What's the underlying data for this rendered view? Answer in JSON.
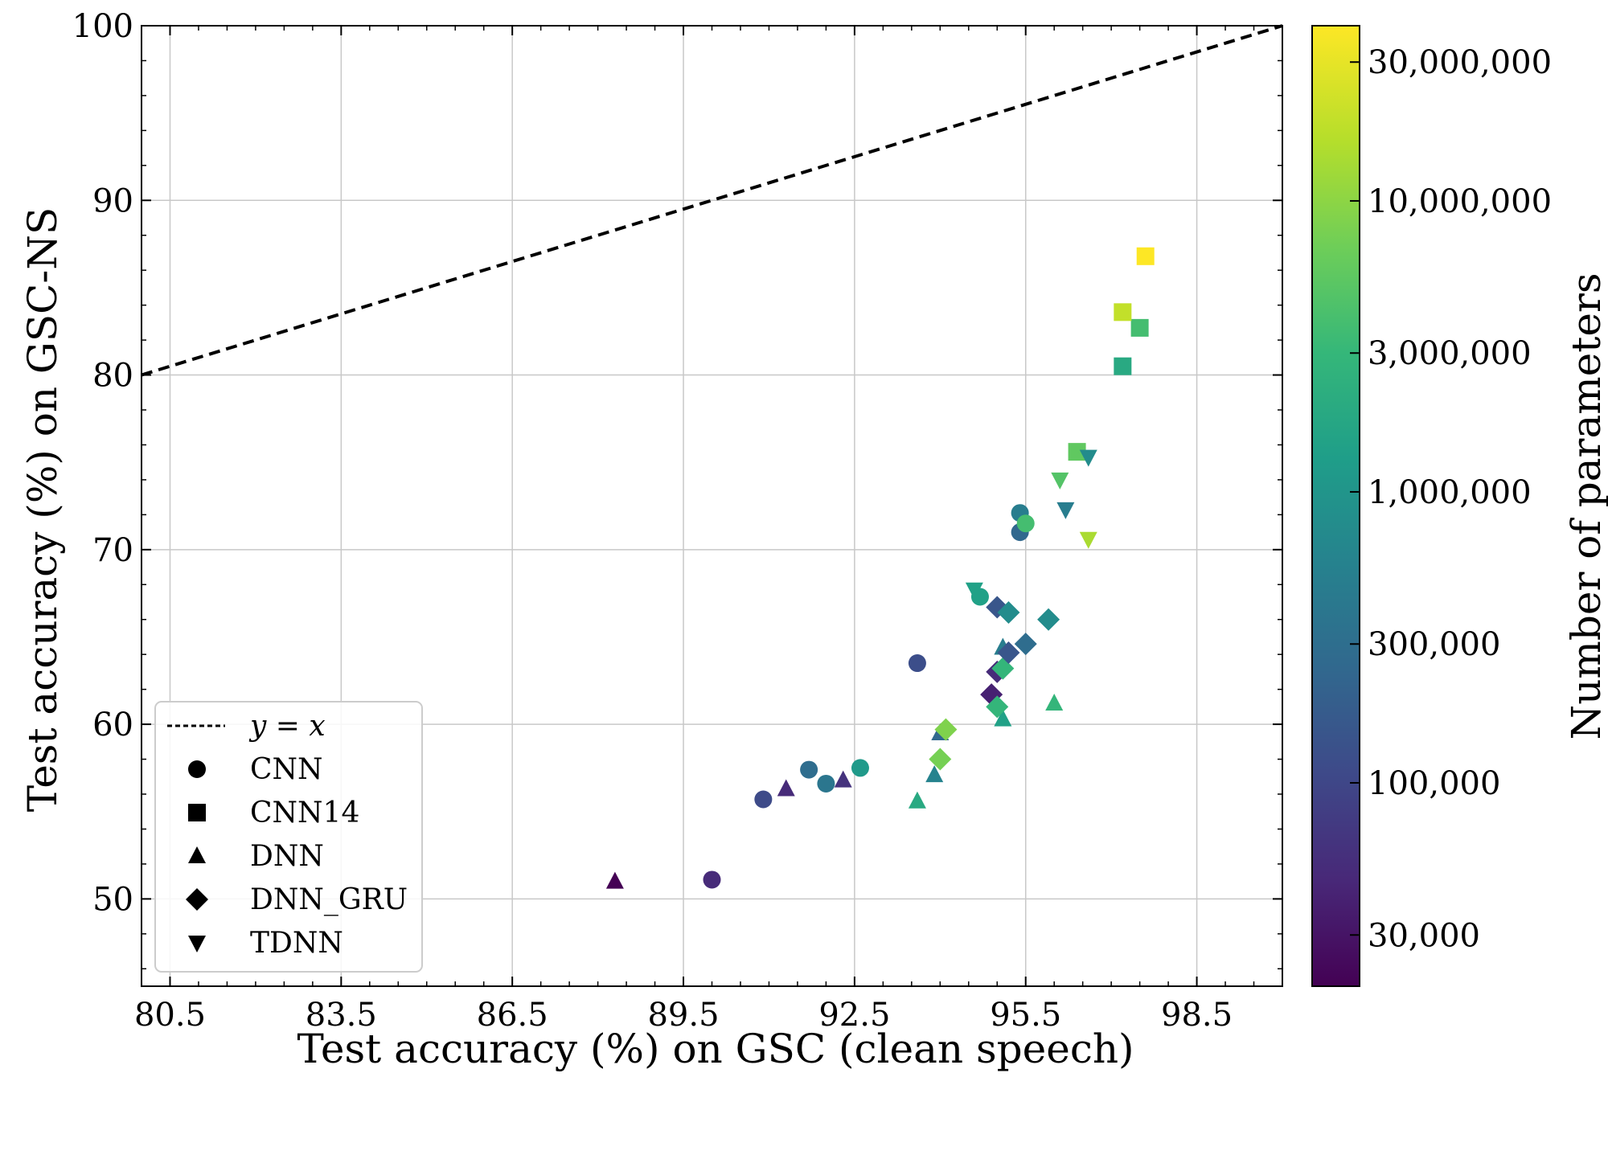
{
  "chart_data": {
    "type": "scatter",
    "title": "",
    "xlabel": "Test accuracy (%) on GSC (clean speech)",
    "ylabel": "Test accuracy (%) on GSC-NS",
    "xlim": [
      80.0,
      100.0
    ],
    "ylim": [
      45.0,
      100.0
    ],
    "x_ticks": [
      80.5,
      83.5,
      86.5,
      89.5,
      92.5,
      95.5,
      98.5
    ],
    "x_tick_labels": [
      "80.5",
      "83.5",
      "86.5",
      "89.5",
      "92.5",
      "95.5",
      "98.5"
    ],
    "y_ticks": [
      50,
      60,
      70,
      80,
      90,
      100
    ],
    "y_tick_labels": [
      "50",
      "60",
      "70",
      "80",
      "90",
      "100"
    ],
    "grid": true,
    "reference_line": {
      "label": "y = x",
      "style": "dashed",
      "color": "#000000"
    },
    "legend": {
      "placement": "lower-left",
      "entries": [
        {
          "label": "y = x",
          "marker": "line"
        },
        {
          "label": "CNN",
          "marker": "circle"
        },
        {
          "label": "CNN14",
          "marker": "square"
        },
        {
          "label": "DNN",
          "marker": "triangle-up"
        },
        {
          "label": "DNN_GRU",
          "marker": "diamond"
        },
        {
          "label": "TDNN",
          "marker": "triangle-down"
        }
      ]
    },
    "colorbar": {
      "label": "Number of parameters",
      "scale": "log",
      "colormap": "viridis",
      "min": 20000,
      "max": 40000000,
      "ticks": [
        30000,
        100000,
        300000,
        1000000,
        3000000,
        10000000,
        30000000
      ],
      "tick_labels": [
        "30,000",
        "100,000",
        "300,000",
        "1,000,000",
        "3,000,000",
        "10,000,000",
        "30,000,000"
      ]
    },
    "series": [
      {
        "name": "CNN",
        "marker": "circle",
        "points": [
          {
            "x": 90.0,
            "y": 51.1,
            "params": 50000
          },
          {
            "x": 90.9,
            "y": 55.7,
            "params": 110000
          },
          {
            "x": 91.7,
            "y": 57.4,
            "params": 300000
          },
          {
            "x": 92.0,
            "y": 56.6,
            "params": 400000
          },
          {
            "x": 92.6,
            "y": 57.5,
            "params": 1200000
          },
          {
            "x": 93.6,
            "y": 63.5,
            "params": 120000
          },
          {
            "x": 94.7,
            "y": 67.3,
            "params": 1500000
          },
          {
            "x": 95.4,
            "y": 72.1,
            "params": 500000
          },
          {
            "x": 95.4,
            "y": 71.0,
            "params": 250000
          },
          {
            "x": 95.5,
            "y": 71.5,
            "params": 4000000
          }
        ]
      },
      {
        "name": "CNN14",
        "marker": "square",
        "points": [
          {
            "x": 96.4,
            "y": 75.6,
            "params": 6000000
          },
          {
            "x": 97.2,
            "y": 80.5,
            "params": 2000000
          },
          {
            "x": 97.5,
            "y": 82.7,
            "params": 4000000
          },
          {
            "x": 97.2,
            "y": 83.6,
            "params": 20000000
          },
          {
            "x": 97.6,
            "y": 86.8,
            "params": 40000000
          }
        ]
      },
      {
        "name": "DNN",
        "marker": "triangle-up",
        "points": [
          {
            "x": 88.3,
            "y": 51.0,
            "params": 20000
          },
          {
            "x": 91.3,
            "y": 56.3,
            "params": 50000
          },
          {
            "x": 92.3,
            "y": 56.8,
            "params": 60000
          },
          {
            "x": 93.6,
            "y": 55.6,
            "params": 2000000
          },
          {
            "x": 93.9,
            "y": 57.1,
            "params": 600000
          },
          {
            "x": 94.0,
            "y": 59.5,
            "params": 250000
          },
          {
            "x": 95.1,
            "y": 60.3,
            "params": 1500000
          },
          {
            "x": 95.1,
            "y": 64.4,
            "params": 500000
          },
          {
            "x": 96.0,
            "y": 61.2,
            "params": 3000000
          }
        ]
      },
      {
        "name": "DNN_GRU",
        "marker": "diamond",
        "points": [
          {
            "x": 94.0,
            "y": 58.0,
            "params": 8000000
          },
          {
            "x": 94.1,
            "y": 59.7,
            "params": 9000000
          },
          {
            "x": 94.9,
            "y": 61.7,
            "params": 40000
          },
          {
            "x": 95.0,
            "y": 61.0,
            "params": 3000000
          },
          {
            "x": 95.0,
            "y": 63.0,
            "params": 50000
          },
          {
            "x": 95.1,
            "y": 63.2,
            "params": 3000000
          },
          {
            "x": 95.2,
            "y": 64.1,
            "params": 150000
          },
          {
            "x": 95.0,
            "y": 66.7,
            "params": 150000
          },
          {
            "x": 95.2,
            "y": 66.4,
            "params": 800000
          },
          {
            "x": 95.5,
            "y": 64.6,
            "params": 300000
          },
          {
            "x": 95.9,
            "y": 66.0,
            "params": 800000
          }
        ]
      },
      {
        "name": "TDNN",
        "marker": "triangle-down",
        "points": [
          {
            "x": 94.6,
            "y": 67.7,
            "params": 1500000
          },
          {
            "x": 96.1,
            "y": 74.0,
            "params": 5000000
          },
          {
            "x": 96.2,
            "y": 72.3,
            "params": 500000
          },
          {
            "x": 96.6,
            "y": 75.3,
            "params": 800000
          },
          {
            "x": 96.6,
            "y": 70.6,
            "params": 15000000
          }
        ]
      }
    ]
  }
}
